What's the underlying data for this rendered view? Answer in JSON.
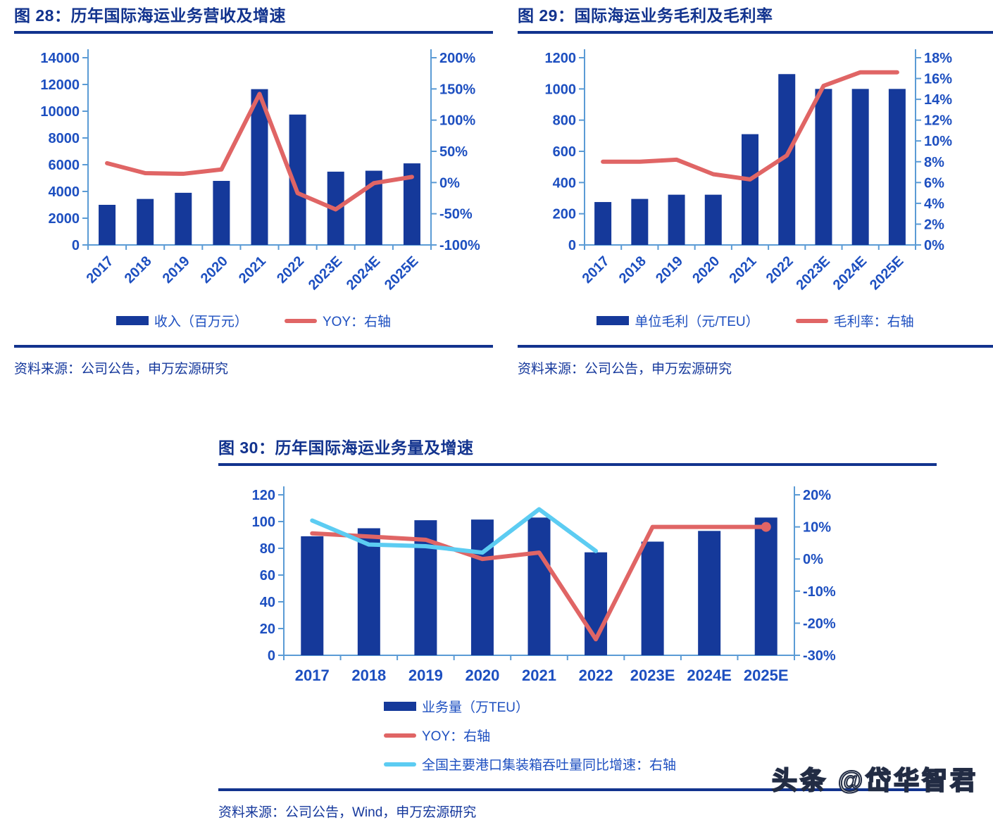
{
  "colors": {
    "title": "#12338e",
    "axis_text": "#1d4fc0",
    "axis_line": "#5b9bd5",
    "bar": "#15399a",
    "red_line": "#e06565",
    "cyan_line": "#5cccf2",
    "divider": "#12338e",
    "source_text": "#15389c"
  },
  "panels": [
    {
      "title": "图 28：历年国际海运业务营收及增速",
      "source": "资料来源：公司公告，申万宏源研究",
      "legend": [
        {
          "swatch": "bar",
          "label": "收入（百万元）"
        },
        {
          "swatch": "line-red",
          "label": "YOY：右轴"
        }
      ]
    },
    {
      "title": "图 29：国际海运业务毛利及毛利率",
      "source": "资料来源：公司公告，申万宏源研究",
      "legend": [
        {
          "swatch": "bar",
          "label": "单位毛利（元/TEU）"
        },
        {
          "swatch": "line-red",
          "label": "毛利率：右轴"
        }
      ]
    },
    {
      "title": "图 30：历年国际海运业务量及增速",
      "source": "资料来源：公司公告，Wind，申万宏源研究",
      "legend": [
        {
          "swatch": "bar",
          "label": "业务量（万TEU）"
        },
        {
          "swatch": "line-red",
          "label": "YOY：右轴"
        },
        {
          "swatch": "line-cyan",
          "label": "全国主要港口集装箱吞吐量同比增速：右轴"
        }
      ]
    }
  ],
  "watermark": "头条 @岱华智君",
  "chart_data": [
    {
      "type": "bar",
      "title": "图 28：历年国际海运业务营收及增速",
      "categories": [
        "2017",
        "2018",
        "2019",
        "2020",
        "2021",
        "2022",
        "2023E",
        "2024E",
        "2025E"
      ],
      "series": [
        {
          "name": "收入（百万元）",
          "type": "bar",
          "axis": "left",
          "color": "bar",
          "values": [
            3000,
            3440,
            3900,
            4790,
            11650,
            9750,
            5480,
            5550,
            6100
          ]
        },
        {
          "name": "YOY：右轴",
          "type": "line",
          "axis": "right",
          "color": "red_line",
          "unit": "%",
          "values": [
            31,
            15,
            14,
            21,
            142,
            -17,
            -43,
            -1,
            9
          ]
        }
      ],
      "xlabel": "",
      "ylabel": "",
      "left_axis": {
        "min": 0,
        "max": 14000,
        "step": 2000
      },
      "right_axis": {
        "min": -100,
        "max": 200,
        "step": 50,
        "format": "percent"
      },
      "x_label_rotation": -45,
      "grid": false,
      "legend_position": "bottom"
    },
    {
      "type": "bar",
      "title": "图 29：国际海运业务毛利及毛利率",
      "categories": [
        "2017",
        "2018",
        "2019",
        "2020",
        "2021",
        "2022",
        "2023E",
        "2024E",
        "2025E"
      ],
      "series": [
        {
          "name": "单位毛利（元/TEU）",
          "type": "bar",
          "axis": "left",
          "color": "bar",
          "values": [
            275,
            295,
            322,
            322,
            710,
            1095,
            1000,
            1000,
            1000
          ]
        },
        {
          "name": "毛利率：右轴",
          "type": "line",
          "axis": "right",
          "color": "red_line",
          "unit": "%",
          "values": [
            8,
            8,
            8.2,
            6.8,
            6.3,
            8.6,
            15.3,
            16.6,
            16.6
          ]
        }
      ],
      "xlabel": "",
      "ylabel": "",
      "left_axis": {
        "min": 0,
        "max": 1200,
        "step": 200
      },
      "right_axis": {
        "min": 0,
        "max": 18,
        "step": 2,
        "format": "percent"
      },
      "x_label_rotation": -45,
      "grid": false,
      "legend_position": "bottom"
    },
    {
      "type": "bar",
      "title": "图 30：历年国际海运业务量及增速",
      "categories": [
        "2017",
        "2018",
        "2019",
        "2020",
        "2021",
        "2022",
        "2023E",
        "2024E",
        "2025E"
      ],
      "series": [
        {
          "name": "业务量（万TEU）",
          "type": "bar",
          "axis": "left",
          "color": "bar",
          "values": [
            89,
            95,
            101,
            101.5,
            103,
            77,
            85,
            93,
            103
          ]
        },
        {
          "name": "YOY：右轴",
          "type": "line",
          "axis": "right",
          "color": "red_line",
          "unit": "%",
          "end_dot": true,
          "values": [
            8,
            7,
            6,
            0,
            2,
            -25,
            10,
            10,
            10
          ]
        },
        {
          "name": "全国主要港口集装箱吞吐量同比增速：右轴",
          "type": "line",
          "axis": "right",
          "color": "cyan_line",
          "unit": "%",
          "values": [
            12,
            4.5,
            4,
            2,
            15.5,
            2.5
          ]
        }
      ],
      "xlabel": "",
      "ylabel": "",
      "left_axis": {
        "min": 0,
        "max": 120,
        "step": 20
      },
      "right_axis": {
        "min": -30,
        "max": 20,
        "step": 10,
        "format": "percent"
      },
      "x_label_rotation": 0,
      "grid": false,
      "legend_position": "bottom"
    }
  ]
}
